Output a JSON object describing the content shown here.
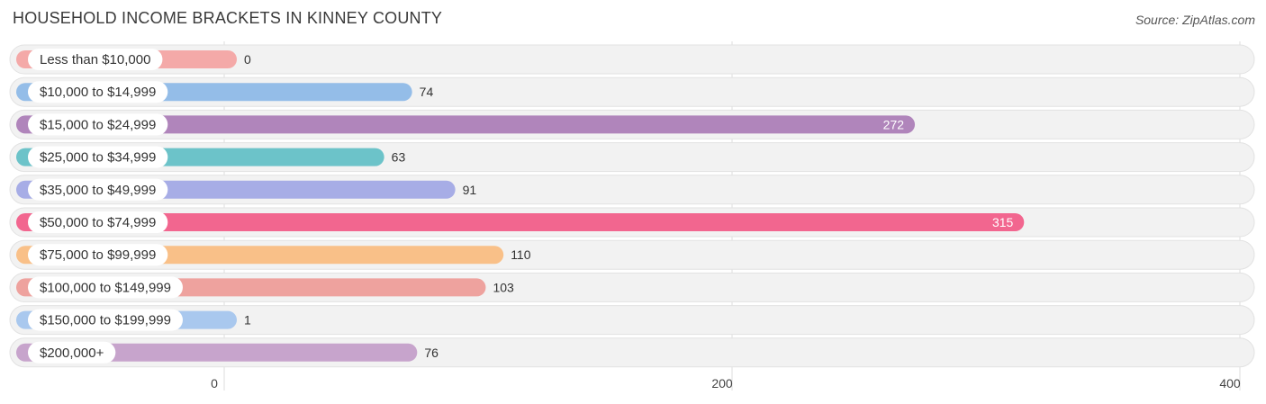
{
  "header": {
    "title": "HOUSEHOLD INCOME BRACKETS IN KINNEY COUNTY",
    "source": "Source: ZipAtlas.com"
  },
  "chart_data": {
    "type": "bar",
    "orientation": "horizontal",
    "categories": [
      "Less than $10,000",
      "$10,000 to $14,999",
      "$15,000 to $24,999",
      "$25,000 to $34,999",
      "$35,000 to $49,999",
      "$50,000 to $74,999",
      "$75,000 to $99,999",
      "$100,000 to $149,999",
      "$150,000 to $199,999",
      "$200,000+"
    ],
    "values": [
      0,
      74,
      272,
      63,
      91,
      315,
      110,
      103,
      1,
      76
    ],
    "colors": [
      "#f4a9a8",
      "#94bde8",
      "#b085bb",
      "#6cc3c9",
      "#a7ade6",
      "#f2668f",
      "#f9c088",
      "#eea29e",
      "#a9c8ee",
      "#c7a4cc"
    ],
    "xlim": [
      0,
      400
    ],
    "xticks": [
      0,
      200,
      400
    ],
    "xtick_labels": [
      "0",
      "200",
      "400"
    ],
    "grid": true,
    "value_labels_inside_threshold": 250
  }
}
